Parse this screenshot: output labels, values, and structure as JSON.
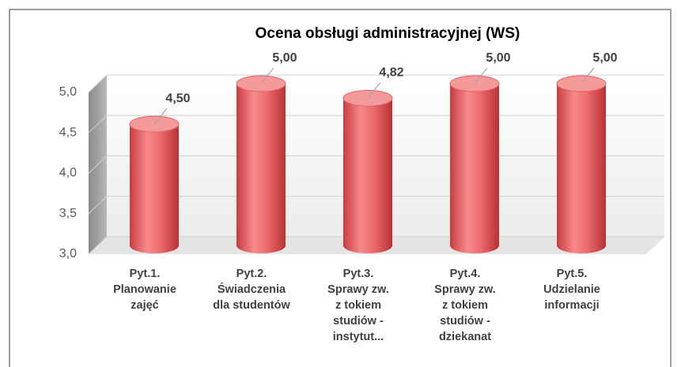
{
  "chart_data": {
    "type": "bar3d",
    "title": "Ocena obsługi administracyjnej (WS)",
    "categories": [
      [
        "Pyt.1.",
        "Planowanie",
        "zajęć"
      ],
      [
        "Pyt.2.",
        "Świadczenia",
        "dla studentów"
      ],
      [
        "Pyt.3.",
        "Sprawy zw.",
        "z tokiem",
        "studiów -",
        "instytut..."
      ],
      [
        "Pyt.4.",
        "Sprawy zw.",
        "z tokiem",
        "studiów -",
        "dziekanat"
      ],
      [
        "Pyt.5.",
        "Udzielanie",
        "informacji"
      ]
    ],
    "values": [
      4.5,
      5,
      4.82,
      5,
      5
    ],
    "value_labels": [
      "4,50",
      "5,00",
      "4,82",
      "5,00",
      "5,00"
    ],
    "color": "#e8585a",
    "ylim": [
      3,
      5
    ],
    "yticks": [
      {
        "value": 3,
        "label": "3,0"
      },
      {
        "value": 3.5,
        "label": "3,5"
      },
      {
        "value": 4,
        "label": "4,0"
      },
      {
        "value": 4.5,
        "label": "4,5"
      },
      {
        "value": 5,
        "label": "5,0"
      }
    ],
    "grid": true
  }
}
